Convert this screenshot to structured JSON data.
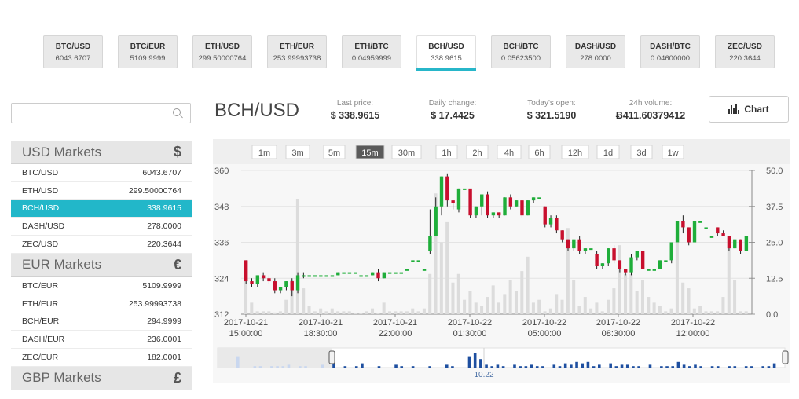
{
  "ticker": [
    {
      "pair": "BTC/USD",
      "price": "6043.6707"
    },
    {
      "pair": "BTC/EUR",
      "price": "5109.9999"
    },
    {
      "pair": "ETH/USD",
      "price": "299.50000764"
    },
    {
      "pair": "ETH/EUR",
      "price": "253.99993738"
    },
    {
      "pair": "ETH/BTC",
      "price": "0.04959999"
    },
    {
      "pair": "BCH/USD",
      "price": "338.9615"
    },
    {
      "pair": "BCH/BTC",
      "price": "0.05623500"
    },
    {
      "pair": "DASH/USD",
      "price": "278.0000"
    },
    {
      "pair": "DASH/BTC",
      "price": "0.04600000"
    },
    {
      "pair": "ZEC/USD",
      "price": "220.3644"
    }
  ],
  "active_pair_index": 5,
  "search": {
    "value": "",
    "placeholder": ""
  },
  "markets": [
    {
      "title": "USD Markets",
      "symbol": "$",
      "rows": [
        {
          "pair": "BTC/USD",
          "price": "6043.6707"
        },
        {
          "pair": "ETH/USD",
          "price": "299.50000764"
        },
        {
          "pair": "BCH/USD",
          "price": "338.9615"
        },
        {
          "pair": "DASH/USD",
          "price": "278.0000"
        },
        {
          "pair": "ZEC/USD",
          "price": "220.3644"
        }
      ]
    },
    {
      "title": "EUR Markets",
      "symbol": "€",
      "rows": [
        {
          "pair": "BTC/EUR",
          "price": "5109.9999"
        },
        {
          "pair": "ETH/EUR",
          "price": "253.99993738"
        },
        {
          "pair": "BCH/EUR",
          "price": "294.9999"
        },
        {
          "pair": "DASH/EUR",
          "price": "236.0001"
        },
        {
          "pair": "ZEC/EUR",
          "price": "182.0001"
        }
      ]
    },
    {
      "title": "GBP Markets",
      "symbol": "£",
      "rows": []
    }
  ],
  "header": {
    "pair": "BCH/USD",
    "last_price_label": "Last price:",
    "last_price": "$ 338.9615",
    "daily_change_label": "Daily change:",
    "daily_change": "$ 17.4425",
    "open_label": "Today's open:",
    "open": "$ 321.5190",
    "volume_label": "24h volume:",
    "volume": "Ƀ411.60379412",
    "chart_button": "Chart"
  },
  "intervals": [
    "1m",
    "3m",
    "5m",
    "15m",
    "30m",
    "1h",
    "2h",
    "4h",
    "6h",
    "12h",
    "1d",
    "3d",
    "1w"
  ],
  "active_interval": "15m",
  "colors": {
    "accent": "#22b7c9",
    "up": "#1fae3a",
    "down": "#c8102e",
    "flat": "#1fae3a",
    "volume": "#dcdcdc",
    "navigator": "#1e4fa0"
  },
  "chart_data": {
    "type": "candlestick",
    "y_price_ticks": [
      312,
      324,
      336,
      348,
      360
    ],
    "y_volume_ticks": [
      "0.0",
      "12.5",
      "25.0",
      "37.5",
      "50.0"
    ],
    "ylim_price": [
      312,
      360
    ],
    "ylim_volume": [
      0,
      50
    ],
    "x_ticks": [
      [
        "2017-10-21",
        "15:00:00"
      ],
      [
        "2017-10-21",
        "18:30:00"
      ],
      [
        "2017-10-21",
        "22:00:00"
      ],
      [
        "2017-10-22",
        "01:30:00"
      ],
      [
        "2017-10-22",
        "05:00:00"
      ],
      [
        "2017-10-22",
        "08:30:00"
      ],
      [
        "2017-10-22",
        "12:00:00"
      ]
    ],
    "navigator_label": "10.22",
    "candles": [
      [
        330,
        323,
        330,
        322
      ],
      [
        323,
        322,
        324,
        321
      ],
      [
        322,
        325,
        325,
        321
      ],
      [
        325,
        324,
        326,
        323
      ],
      [
        324,
        323,
        325,
        322
      ],
      [
        323,
        320,
        324,
        319
      ],
      [
        320,
        321,
        321,
        319
      ],
      [
        321,
        323,
        323,
        320
      ],
      [
        323,
        320,
        324,
        318
      ],
      [
        320,
        325,
        326,
        319
      ],
      [
        325,
        325,
        326,
        324
      ],
      [
        325,
        325,
        325,
        325
      ],
      [
        325,
        325,
        325,
        325
      ],
      [
        325,
        325,
        325,
        325
      ],
      [
        325,
        325,
        325,
        325
      ],
      [
        325,
        325,
        325,
        325
      ],
      [
        325,
        326,
        326,
        325
      ],
      [
        326,
        326,
        326,
        326
      ],
      [
        326,
        326,
        326,
        326
      ],
      [
        326,
        326,
        326,
        326
      ],
      [
        325,
        325,
        325,
        325
      ],
      [
        325,
        325,
        325,
        325
      ],
      [
        325,
        326,
        326,
        325
      ],
      [
        326,
        324,
        327,
        323
      ],
      [
        324,
        326,
        326,
        324
      ],
      [
        326,
        326,
        326,
        326
      ],
      [
        326,
        326,
        326,
        326
      ],
      [
        326,
        326,
        326,
        326
      ],
      [
        327,
        327,
        327,
        327
      ],
      [
        330,
        330,
        330,
        330
      ],
      [
        330,
        330,
        330,
        330
      ],
      [
        327,
        327,
        327,
        327
      ],
      [
        333,
        338,
        347,
        332
      ],
      [
        338,
        348,
        351,
        345
      ],
      [
        348,
        358,
        358,
        345
      ],
      [
        358,
        350,
        359,
        348
      ],
      [
        350,
        349,
        350,
        347
      ],
      [
        347,
        354,
        354,
        346
      ],
      [
        354,
        354,
        354,
        354
      ],
      [
        354,
        345,
        346,
        344
      ],
      [
        345,
        348,
        348,
        344
      ],
      [
        348,
        352,
        352,
        345
      ],
      [
        352,
        345,
        353,
        344
      ],
      [
        345,
        346,
        346,
        344
      ],
      [
        346,
        345,
        346,
        344
      ],
      [
        345,
        351,
        351,
        345
      ],
      [
        351,
        348,
        352,
        347
      ],
      [
        348,
        350,
        350,
        348
      ],
      [
        350,
        345,
        350,
        344
      ],
      [
        345,
        350,
        350,
        345
      ],
      [
        350,
        351,
        351,
        349
      ],
      [
        351,
        351,
        351,
        351
      ],
      [
        348,
        342,
        348,
        341
      ],
      [
        342,
        344,
        345,
        341
      ],
      [
        344,
        340,
        345,
        339
      ],
      [
        340,
        337,
        340,
        336
      ],
      [
        337,
        334,
        337,
        333
      ],
      [
        334,
        337,
        337,
        333
      ],
      [
        337,
        333,
        338,
        332
      ],
      [
        333,
        334,
        334,
        332
      ],
      [
        334,
        334,
        334,
        334
      ],
      [
        332,
        328,
        333,
        327
      ],
      [
        328,
        329,
        329,
        327
      ],
      [
        329,
        334,
        334,
        328
      ],
      [
        334,
        330,
        335,
        329
      ],
      [
        330,
        327,
        330,
        326
      ],
      [
        327,
        326,
        327,
        325
      ],
      [
        326,
        331,
        332,
        325
      ],
      [
        331,
        333,
        333,
        330
      ],
      [
        333,
        327,
        333,
        327
      ],
      [
        327,
        327,
        327,
        327
      ],
      [
        327,
        327,
        327,
        327
      ],
      [
        327,
        330,
        330,
        327
      ],
      [
        330,
        330,
        330,
        330
      ],
      [
        330,
        336,
        336,
        329
      ],
      [
        336,
        343,
        343,
        336
      ],
      [
        343,
        341,
        345,
        339
      ],
      [
        341,
        336,
        341,
        335
      ],
      [
        336,
        343,
        343,
        336
      ],
      [
        343,
        343,
        343,
        343
      ],
      [
        341,
        341,
        341,
        341
      ],
      [
        338,
        338,
        338,
        338
      ],
      [
        341,
        339,
        341,
        338
      ],
      [
        339,
        338,
        340,
        338
      ],
      [
        338,
        334,
        338,
        333
      ],
      [
        334,
        337,
        337,
        334
      ],
      [
        337,
        333,
        337,
        332
      ],
      [
        333,
        338,
        338,
        333
      ]
    ],
    "volumes": [
      16,
      4,
      1,
      1,
      1,
      0.6,
      1,
      5,
      12,
      40,
      9,
      3,
      1,
      2,
      1,
      2,
      1,
      1,
      1,
      0.5,
      0.5,
      1,
      2,
      0.5,
      4,
      1,
      1,
      1,
      1,
      2,
      1,
      2,
      14,
      42,
      25,
      32,
      11,
      14,
      5,
      8,
      4,
      3,
      6,
      10,
      4,
      7,
      12,
      8,
      15,
      20,
      4,
      5,
      1,
      2,
      7,
      5,
      30,
      12,
      3,
      6,
      2,
      4,
      1,
      5,
      9,
      24,
      14,
      14,
      8,
      12,
      6,
      4,
      3,
      1,
      2,
      27,
      11,
      9,
      2,
      3,
      1,
      1,
      1,
      6,
      27,
      12,
      1,
      1
    ]
  }
}
